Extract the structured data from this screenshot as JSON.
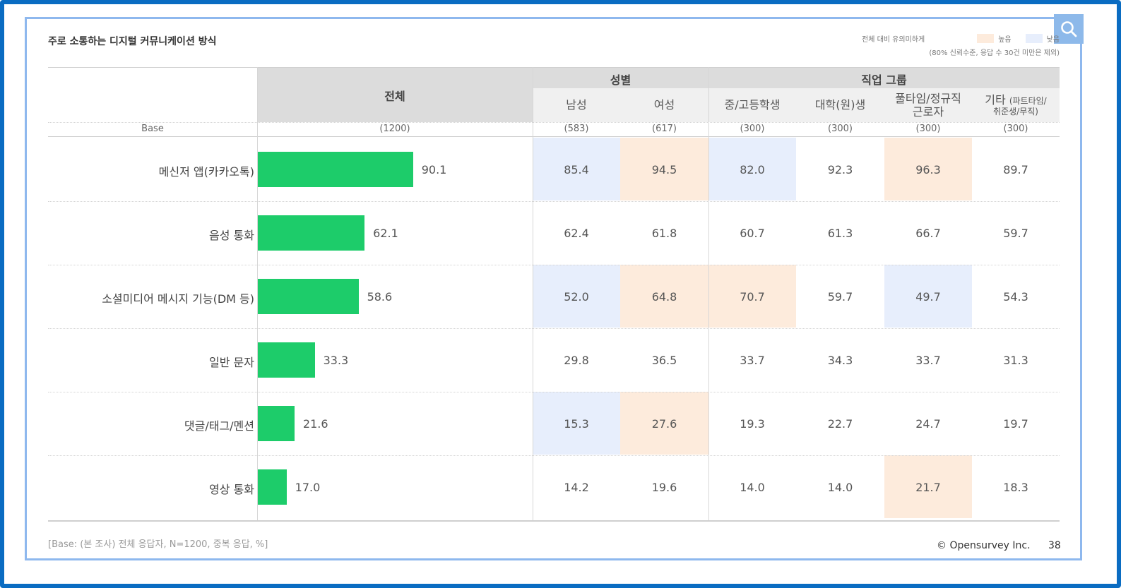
{
  "title": "주로 소통하는 디지털 커뮤니케이션 방식",
  "legend": {
    "label": "전체 대비 유의미하게",
    "high_label": "높음",
    "low_label": "낮음",
    "note": "(80% 신뢰수준, 응답 수 30건 미만은 제외)",
    "high_color": "#fdebdc",
    "low_color": "#e7eefc"
  },
  "header": {
    "total": "전체",
    "gender_group": "성별",
    "job_group": "직업 그룹",
    "base_label": "Base",
    "columns": [
      "남성",
      "여성",
      "중/고등학생",
      "대학(원)생",
      "풀타임/정규직 근로자",
      "기타 (파트타임/ 취준생/무직)"
    ],
    "col_full": "풀타임/정규직",
    "col_full2": "근로자",
    "col_other": "기타",
    "col_other_paren1": "(파트타임/",
    "col_other_paren2": "취준생/무직)",
    "base_total": "(1200)",
    "base_values": [
      "(583)",
      "(617)",
      "(300)",
      "(300)",
      "(300)",
      "(300)"
    ]
  },
  "chart_data": {
    "type": "bar",
    "categories": [
      "메신저 앱(카카오톡)",
      "음성 통화",
      "소셜미디어 메시지 기능(DM 등)",
      "일반 문자",
      "댓글/태그/멘션",
      "영상 통화"
    ],
    "values": [
      90.1,
      62.1,
      58.6,
      33.3,
      21.6,
      17.0
    ],
    "value_labels": [
      "90.1",
      "62.1",
      "58.6",
      "33.3",
      "21.6",
      "17.0"
    ],
    "xlim": [
      0,
      100
    ],
    "bar_color": "#1dcc6a"
  },
  "table": {
    "rows": [
      {
        "values": [
          "85.4",
          "94.5",
          "82.0",
          "92.3",
          "96.3",
          "89.7"
        ],
        "flags": [
          "low",
          "high",
          "low",
          "",
          "high",
          ""
        ]
      },
      {
        "values": [
          "62.4",
          "61.8",
          "60.7",
          "61.3",
          "66.7",
          "59.7"
        ],
        "flags": [
          "",
          "",
          "",
          "",
          "",
          ""
        ]
      },
      {
        "values": [
          "52.0",
          "64.8",
          "70.7",
          "59.7",
          "49.7",
          "54.3"
        ],
        "flags": [
          "low",
          "high",
          "high",
          "",
          "low",
          ""
        ]
      },
      {
        "values": [
          "29.8",
          "36.5",
          "33.7",
          "34.3",
          "33.7",
          "31.3"
        ],
        "flags": [
          "",
          "",
          "",
          "",
          "",
          ""
        ]
      },
      {
        "values": [
          "15.3",
          "27.6",
          "19.3",
          "22.7",
          "24.7",
          "19.7"
        ],
        "flags": [
          "low",
          "high",
          "",
          "",
          "",
          ""
        ]
      },
      {
        "values": [
          "14.2",
          "19.6",
          "14.0",
          "14.0",
          "21.7",
          "18.3"
        ],
        "flags": [
          "",
          "",
          "",
          "",
          "high",
          ""
        ]
      }
    ]
  },
  "footnote": "[Base: (본 조사) 전체 응답자, N=1200, 중복 응답, %]",
  "copyright": "© Opensurvey Inc.",
  "page_number": "38",
  "search_icon": "search-icon"
}
